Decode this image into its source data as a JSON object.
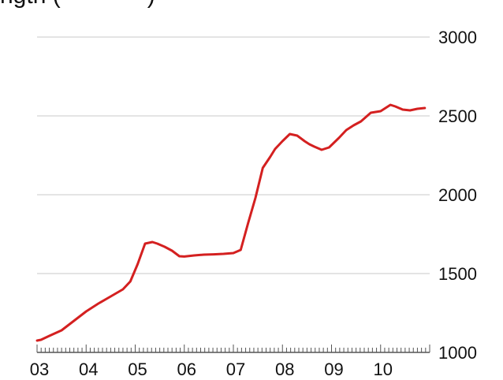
{
  "chart_data": {
    "type": "line",
    "title": "ngth (",
    "title_suffix": ")",
    "xlabel": "",
    "ylabel": "",
    "x_tick_labels": [
      "03",
      "04",
      "05",
      "06",
      "07",
      "08",
      "09",
      "10"
    ],
    "y_tick_labels": [
      "1000",
      "1500",
      "2000",
      "2500",
      "3000"
    ],
    "ylim": [
      1000,
      3000
    ],
    "xlim": [
      2003.0,
      2011.0
    ],
    "y_axis_position": "right",
    "grid": true,
    "colors": {
      "line": "#d42020",
      "grid": "#dcdcdc",
      "axis": "#555555"
    },
    "series": [
      {
        "x": [
          2003.0,
          2003.08,
          2003.25,
          2003.5,
          2003.75,
          2004.0,
          2004.25,
          2004.5,
          2004.75,
          2004.9,
          2005.05,
          2005.2,
          2005.35,
          2005.45,
          2005.6,
          2005.75,
          2005.9,
          2006.0,
          2006.2,
          2006.4,
          2006.6,
          2006.8,
          2007.0,
          2007.15,
          2007.3,
          2007.45,
          2007.6,
          2007.75,
          2007.85,
          2008.0,
          2008.15,
          2008.3,
          2008.45,
          2008.55,
          2008.65,
          2008.8,
          2008.95,
          2009.05,
          2009.15,
          2009.3,
          2009.45,
          2009.6,
          2009.8,
          2010.0,
          2010.1,
          2010.2,
          2010.3,
          2010.45,
          2010.6,
          2010.75,
          2010.9
        ],
        "y": [
          1075,
          1080,
          1105,
          1140,
          1200,
          1260,
          1310,
          1355,
          1400,
          1450,
          1560,
          1690,
          1700,
          1690,
          1670,
          1645,
          1610,
          1608,
          1615,
          1620,
          1622,
          1625,
          1630,
          1650,
          1820,
          1980,
          2170,
          2240,
          2290,
          2340,
          2385,
          2375,
          2340,
          2320,
          2305,
          2285,
          2300,
          2330,
          2360,
          2410,
          2440,
          2465,
          2520,
          2530,
          2550,
          2570,
          2560,
          2540,
          2535,
          2545,
          2550
        ]
      }
    ]
  }
}
